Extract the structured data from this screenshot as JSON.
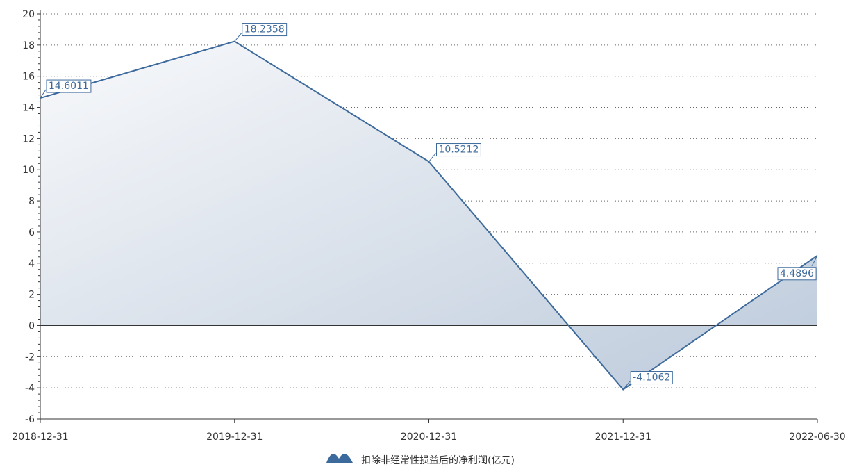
{
  "chart_data": {
    "type": "area",
    "title": "",
    "xlabel": "",
    "ylabel": "",
    "categories": [
      "2018-12-31",
      "2019-12-31",
      "2020-12-31",
      "2021-12-31",
      "2022-06-30"
    ],
    "series": [
      {
        "name": "扣除非经常性损益后的净利润(亿元)",
        "values": [
          14.6011,
          18.2358,
          10.5212,
          -4.1062,
          4.4896
        ],
        "labels": [
          "14.6011",
          "18.2358",
          "10.5212",
          "-4.1062",
          "4.4896"
        ]
      }
    ],
    "ylim": [
      -6,
      20
    ],
    "yticks": [
      -6,
      -4,
      -2,
      0,
      2,
      4,
      6,
      8,
      10,
      12,
      14,
      16,
      18,
      20
    ],
    "grid": true,
    "legend_position": "bottom-center",
    "colors": {
      "line": "#3d6a9c",
      "area_light": "#f8f9fb",
      "area_dark": "#bccadb"
    }
  }
}
